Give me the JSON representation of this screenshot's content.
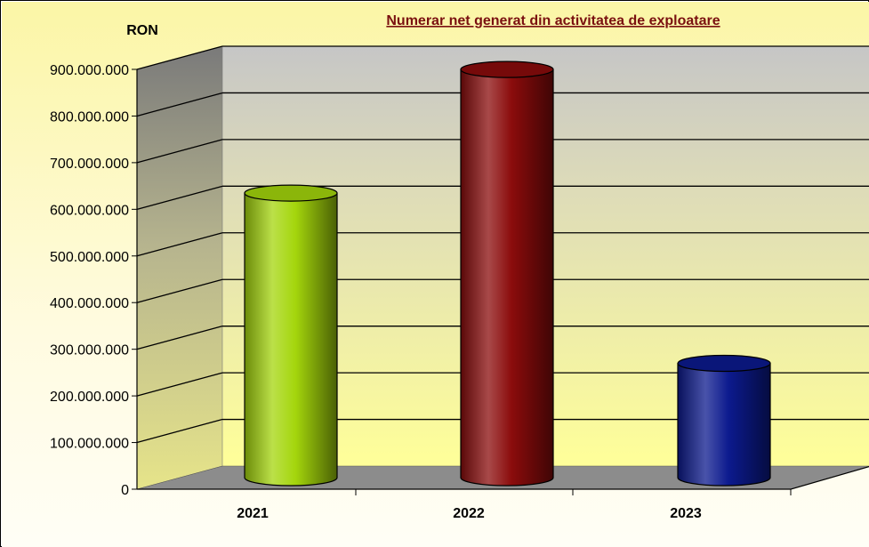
{
  "chart_data": {
    "type": "bar",
    "title": "Numerar net generat din activitatea de exploatare",
    "ylabel": "RON",
    "xlabel": "",
    "categories": [
      "2021",
      "2022",
      "2023"
    ],
    "values": [
      610000000,
      875000000,
      245000000
    ],
    "ylim": [
      0,
      900000000
    ],
    "yticks": [
      "0",
      "100.000.000",
      "200.000.000",
      "300.000.000",
      "400.000.000",
      "500.000.000",
      "600.000.000",
      "700.000.000",
      "800.000.000",
      "900.000.000"
    ],
    "grid": true,
    "style": "3d-cylinder",
    "colors": {
      "2021": "#a4d60c",
      "2022": "#8b0c0c",
      "2023": "#0c1a8e",
      "title": "#7a1010",
      "background_top": "#c9c9c9",
      "background_bottom": "#ffff99"
    }
  }
}
